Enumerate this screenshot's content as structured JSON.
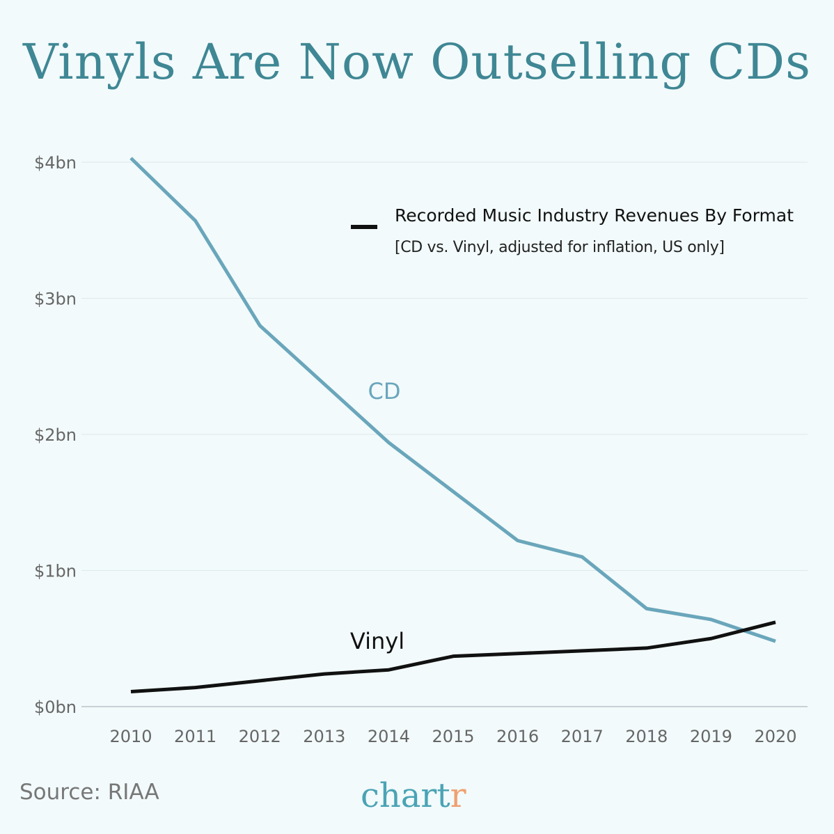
{
  "chart_data": {
    "type": "line",
    "title": "Vinyls Are Now Outselling CDs",
    "legend_title": "Recorded Music Industry Revenues By Format",
    "legend_subtitle": "[CD vs. Vinyl, adjusted for inflation, US only]",
    "legend_placement": "top-right",
    "x": [
      2010,
      2011,
      2012,
      2013,
      2014,
      2015,
      2016,
      2017,
      2018,
      2019,
      2020
    ],
    "x_tick_labels": [
      "2010",
      "2011",
      "2012",
      "2013",
      "2014",
      "2015",
      "2016",
      "2017",
      "2018",
      "2019",
      "2020"
    ],
    "y_ticks": [
      0,
      1,
      2,
      3,
      4
    ],
    "y_tick_labels": [
      "$0bn",
      "$1bn",
      "$2bn",
      "$3bn",
      "$4bn"
    ],
    "ylim": [
      0,
      4
    ],
    "grid": true,
    "series": [
      {
        "name": "CD",
        "color": "#6aa6bb",
        "values": [
          4.03,
          3.57,
          2.8,
          2.37,
          1.94,
          1.58,
          1.22,
          1.1,
          0.72,
          0.64,
          0.48
        ]
      },
      {
        "name": "Vinyl",
        "color": "#111111",
        "values": [
          0.11,
          0.14,
          0.19,
          0.24,
          0.27,
          0.37,
          0.39,
          0.41,
          0.43,
          0.5,
          0.62
        ]
      }
    ]
  },
  "footer": {
    "source": "Source: RIAA",
    "logo_main": "chart",
    "logo_accent": "r"
  }
}
